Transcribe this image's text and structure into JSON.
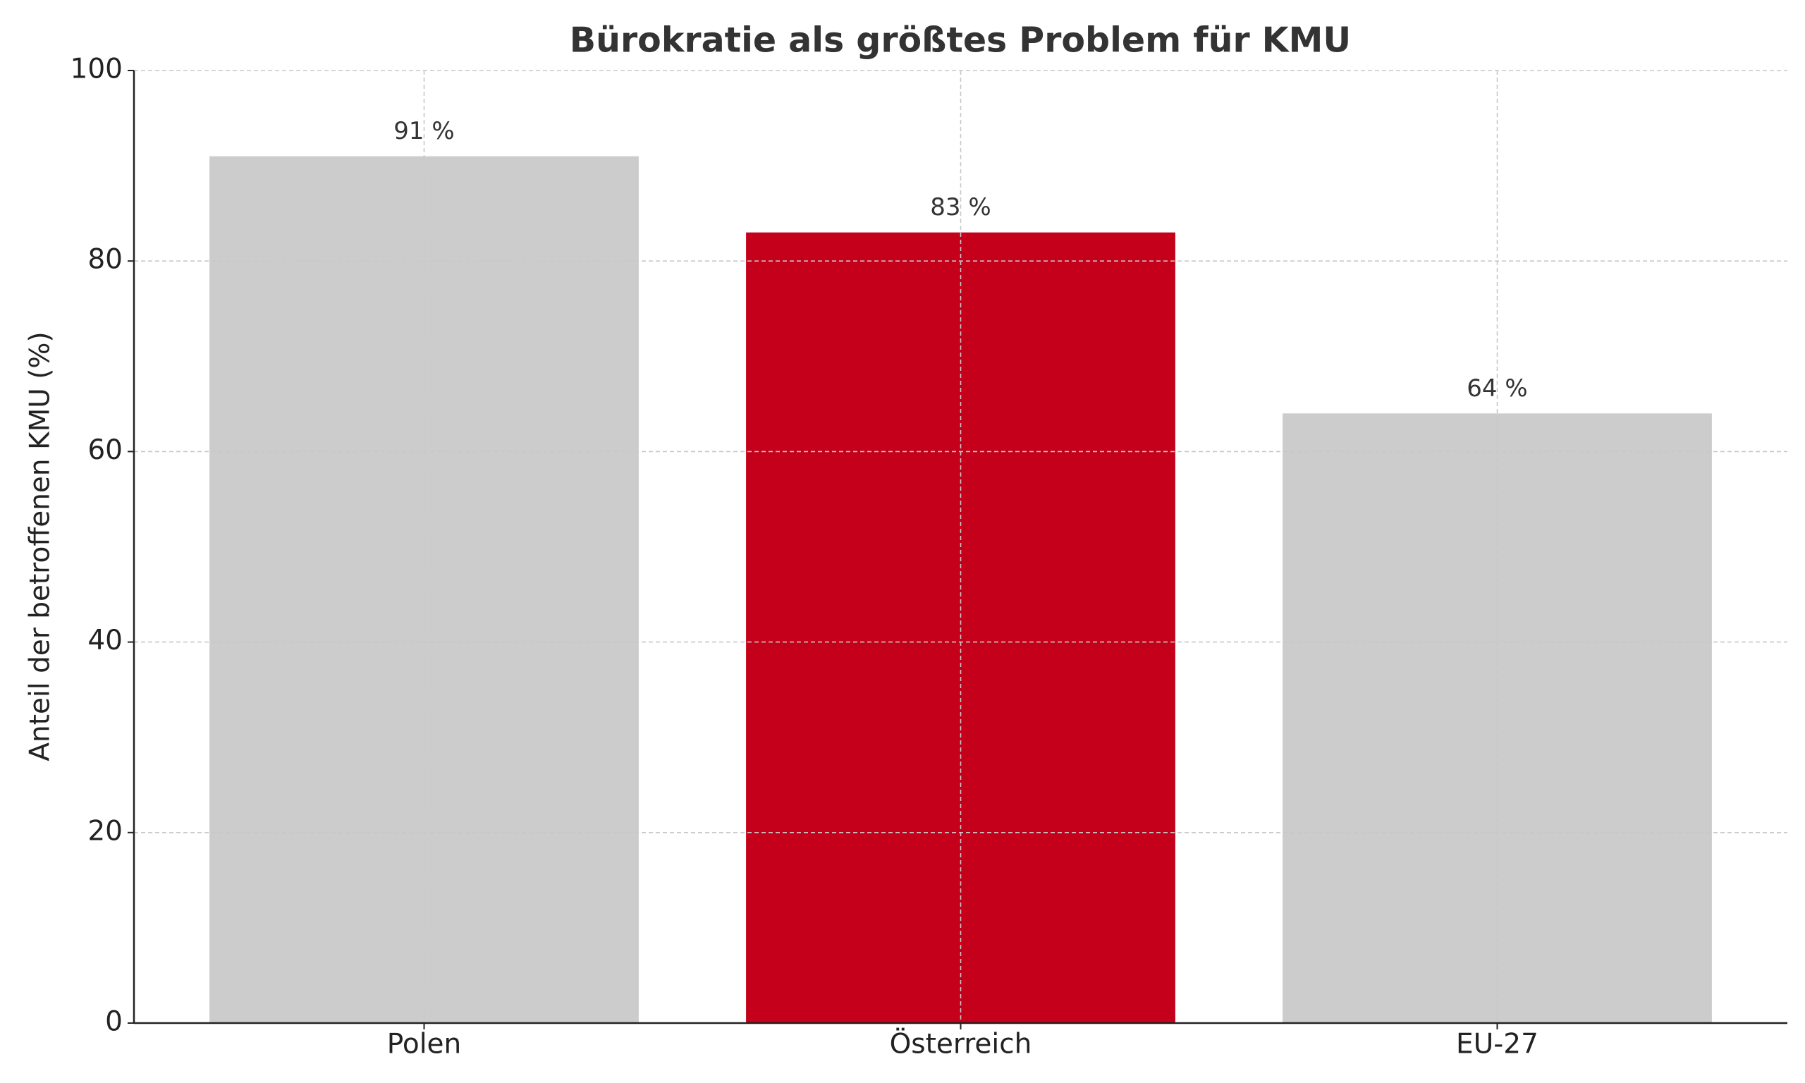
{
  "chart_data": {
    "type": "bar",
    "title": "Bürokratie als größtes Problem für KMU",
    "y_label": "Anteil der betroffenen KMU (%)",
    "categories": [
      "Polen",
      "Österreich",
      "EU-27"
    ],
    "values": [
      91,
      83,
      64
    ],
    "value_labels": [
      "91 %",
      "83 %",
      "64 %"
    ],
    "colors": [
      "#cccccc",
      "#c4001a",
      "#cccccc"
    ],
    "ylim": [
      0,
      100
    ],
    "yticks": [
      0,
      20,
      40,
      60,
      80,
      100
    ],
    "grid": true
  }
}
